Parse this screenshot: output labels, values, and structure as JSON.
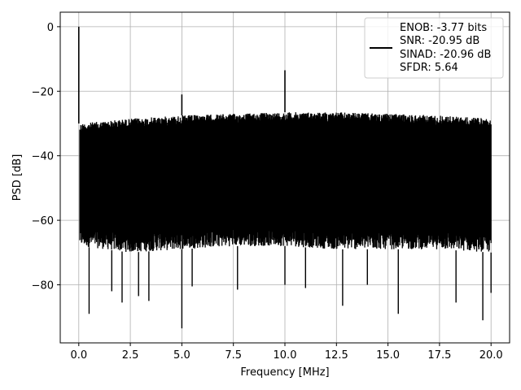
{
  "chart_data": {
    "type": "line",
    "xlabel": "Frequency [MHz]",
    "ylabel": "PSD [dB]",
    "xlim": [
      -0.9,
      20.9
    ],
    "ylim": [
      -98,
      4.5
    ],
    "xticks": [
      0.0,
      2.5,
      5.0,
      7.5,
      10.0,
      12.5,
      15.0,
      17.5,
      20.0
    ],
    "xtick_labels": [
      "0.0",
      "2.5",
      "5.0",
      "7.5",
      "10.0",
      "12.5",
      "15.0",
      "17.5",
      "20.0"
    ],
    "yticks": [
      0,
      -20,
      -40,
      -60,
      -80
    ],
    "ytick_labels": [
      "0",
      "−20",
      "−40",
      "−60",
      "−80"
    ],
    "grid": true,
    "series_color": "#000000",
    "noise_band": {
      "upper_envelope": [
        [
          0.05,
          -30
        ],
        [
          2.5,
          -28.5
        ],
        [
          5.0,
          -27.5
        ],
        [
          7.5,
          -27
        ],
        [
          10.0,
          -26.5
        ],
        [
          12.5,
          -26.5
        ],
        [
          15.0,
          -27
        ],
        [
          17.5,
          -27.5
        ],
        [
          20.0,
          -28.5
        ]
      ],
      "lower_envelope": [
        [
          0.05,
          -68
        ],
        [
          2.5,
          -70
        ],
        [
          5.0,
          -69
        ],
        [
          7.5,
          -68
        ],
        [
          10.0,
          -68
        ],
        [
          12.5,
          -69
        ],
        [
          15.0,
          -69
        ],
        [
          17.5,
          -69
        ],
        [
          20.0,
          -70
        ]
      ]
    },
    "spikes": [
      {
        "x": 0.0,
        "y": 0.0
      },
      {
        "x": 5.0,
        "y": -21
      },
      {
        "x": 10.0,
        "y": -13.5
      }
    ],
    "dips": [
      {
        "x": 0.5,
        "y": -89
      },
      {
        "x": 1.6,
        "y": -82
      },
      {
        "x": 2.1,
        "y": -85.5
      },
      {
        "x": 2.9,
        "y": -83.5
      },
      {
        "x": 3.4,
        "y": -85
      },
      {
        "x": 5.0,
        "y": -93.5
      },
      {
        "x": 5.5,
        "y": -80.5
      },
      {
        "x": 7.7,
        "y": -81.5
      },
      {
        "x": 10.0,
        "y": -80
      },
      {
        "x": 11.0,
        "y": -81
      },
      {
        "x": 12.8,
        "y": -86.5
      },
      {
        "x": 14.0,
        "y": -80
      },
      {
        "x": 15.5,
        "y": -89
      },
      {
        "x": 18.3,
        "y": -85.5
      },
      {
        "x": 19.6,
        "y": -91
      },
      {
        "x": 20.0,
        "y": -82.5
      }
    ],
    "legend": {
      "placement": "top-right",
      "entries": [
        "ENOB: -3.77 bits",
        "SNR: -20.95 dB",
        "SINAD: -20.96 dB",
        "SFDR: 5.64"
      ]
    }
  }
}
